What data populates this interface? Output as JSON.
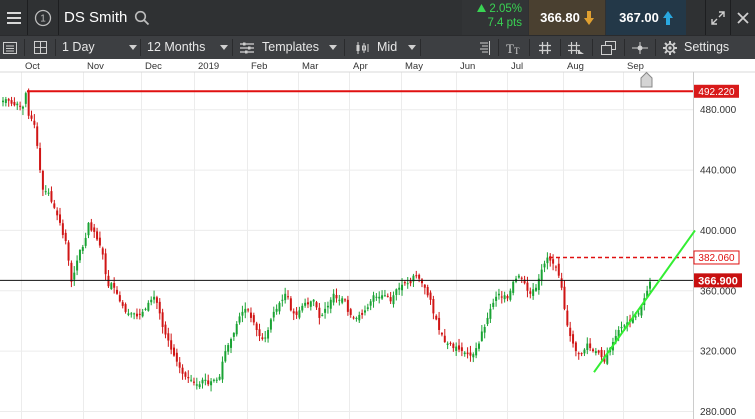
{
  "header": {
    "title": "DS Smith",
    "change_pct": "2.05%",
    "change_pts": "7.4 pts",
    "sell_price": "366.80",
    "buy_price": "367.00",
    "change_color": "#39d353",
    "sell_arrow_color": "#e0a030",
    "buy_arrow_color": "#29a8e0"
  },
  "toolbar": {
    "interval": "1 Day",
    "period": "12 Months",
    "templates_label": "Templates",
    "price_type": "Mid",
    "settings_label": "Settings"
  },
  "chart_data": {
    "type": "candlestick",
    "x_ticks": [
      "Oct",
      "Nov",
      "Dec",
      "2019",
      "Feb",
      "Mar",
      "Apr",
      "May",
      "Jun",
      "Jul",
      "Aug",
      "Sep"
    ],
    "y_ticks": [
      "480.000",
      "440.000",
      "400.000",
      "360.000",
      "320.000",
      "280.000"
    ],
    "ylim": [
      275,
      505
    ],
    "grid": true,
    "annotations": {
      "resistance_line": {
        "value": 492.22,
        "label": "492.220",
        "color": "#e01010",
        "style": "solid"
      },
      "recent_high_line": {
        "value": 382.06,
        "label": "382.060",
        "color": "#e01010",
        "style": "dashed"
      },
      "current_price_line": {
        "value": 366.9,
        "label": "366.900",
        "color": "#111111",
        "style": "solid"
      },
      "trend_line": {
        "from": [
          "Aug",
          306
        ],
        "to": [
          "Sep",
          400
        ],
        "color": "#33ee33"
      }
    },
    "close_series": [
      486,
      487,
      486,
      484,
      483,
      484,
      482,
      482,
      491,
      476,
      474,
      470,
      456,
      440,
      427,
      426,
      425,
      419,
      415,
      410,
      405,
      397,
      393,
      380,
      366,
      372,
      380,
      387,
      389,
      395,
      405,
      400,
      399,
      394,
      390,
      384,
      371,
      363,
      365,
      362,
      358,
      353,
      350,
      346,
      345,
      345,
      345,
      343,
      344,
      346,
      348,
      352,
      354,
      356,
      352,
      345,
      336,
      331,
      327,
      321,
      317,
      313,
      309,
      305,
      303,
      302,
      301,
      299,
      298,
      298,
      301,
      301,
      298,
      300,
      301,
      301,
      303,
      313,
      320,
      324,
      328,
      332,
      338,
      343,
      346,
      348,
      347,
      342,
      339,
      334,
      330,
      328,
      329,
      334,
      341,
      346,
      348,
      352,
      354,
      358,
      356,
      347,
      345,
      344,
      347,
      350,
      352,
      351,
      353,
      354,
      349,
      342,
      344,
      348,
      350,
      354,
      358,
      355,
      354,
      355,
      354,
      346,
      344,
      342,
      342,
      344,
      344,
      347,
      349,
      353,
      357,
      356,
      356,
      357,
      357,
      356,
      353,
      357,
      361,
      362,
      364,
      365,
      365,
      365,
      370,
      370,
      368,
      365,
      362,
      357,
      354,
      345,
      341,
      334,
      331,
      326,
      325,
      325,
      322,
      323,
      321,
      320,
      319,
      318,
      317,
      318,
      322,
      325,
      333,
      336,
      342,
      348,
      352,
      356,
      358,
      356,
      357,
      355,
      360,
      366,
      368,
      370,
      368,
      365,
      360,
      358,
      361,
      362,
      368,
      374,
      378,
      382,
      380,
      378,
      376,
      370,
      362,
      348,
      337,
      330,
      325,
      320,
      318,
      318,
      321,
      325,
      322,
      320,
      320,
      319,
      316,
      313,
      318,
      322,
      326,
      330,
      334,
      336,
      337,
      339,
      340,
      343,
      343,
      345,
      350,
      355,
      360,
      366
    ]
  }
}
